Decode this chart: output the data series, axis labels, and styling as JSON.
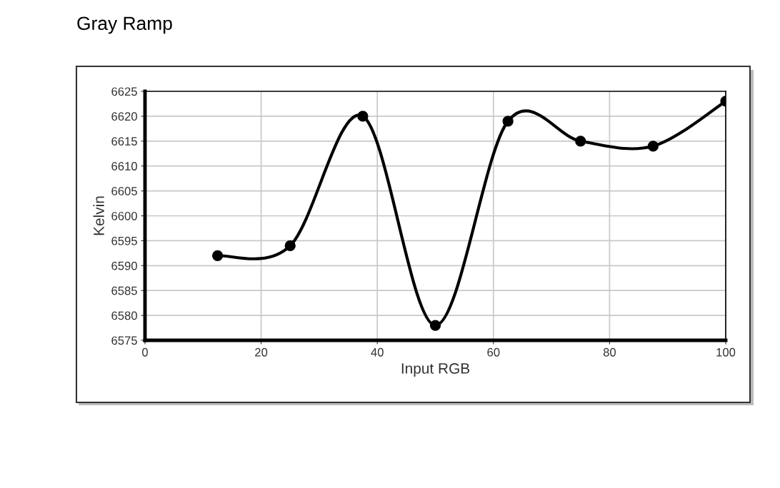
{
  "chart_data": {
    "type": "line",
    "title": "Gray Ramp",
    "xlabel": "Input RGB",
    "ylabel": "Kelvin",
    "x": [
      12.5,
      25,
      37.5,
      50,
      62.5,
      75,
      87.5,
      100
    ],
    "series": [
      {
        "color": "#000000",
        "values": [
          6592,
          6594,
          6620,
          6578,
          6619,
          6615,
          6614,
          6623
        ]
      }
    ],
    "xlim": [
      0,
      100
    ],
    "xticks": [
      0,
      20,
      40,
      60,
      80,
      100
    ],
    "ylim": [
      6575,
      6625
    ],
    "yticks": [
      6575,
      6580,
      6585,
      6590,
      6595,
      6600,
      6605,
      6610,
      6615,
      6620,
      6625
    ],
    "grid": true,
    "marker": "circle",
    "line_style": "solid"
  }
}
